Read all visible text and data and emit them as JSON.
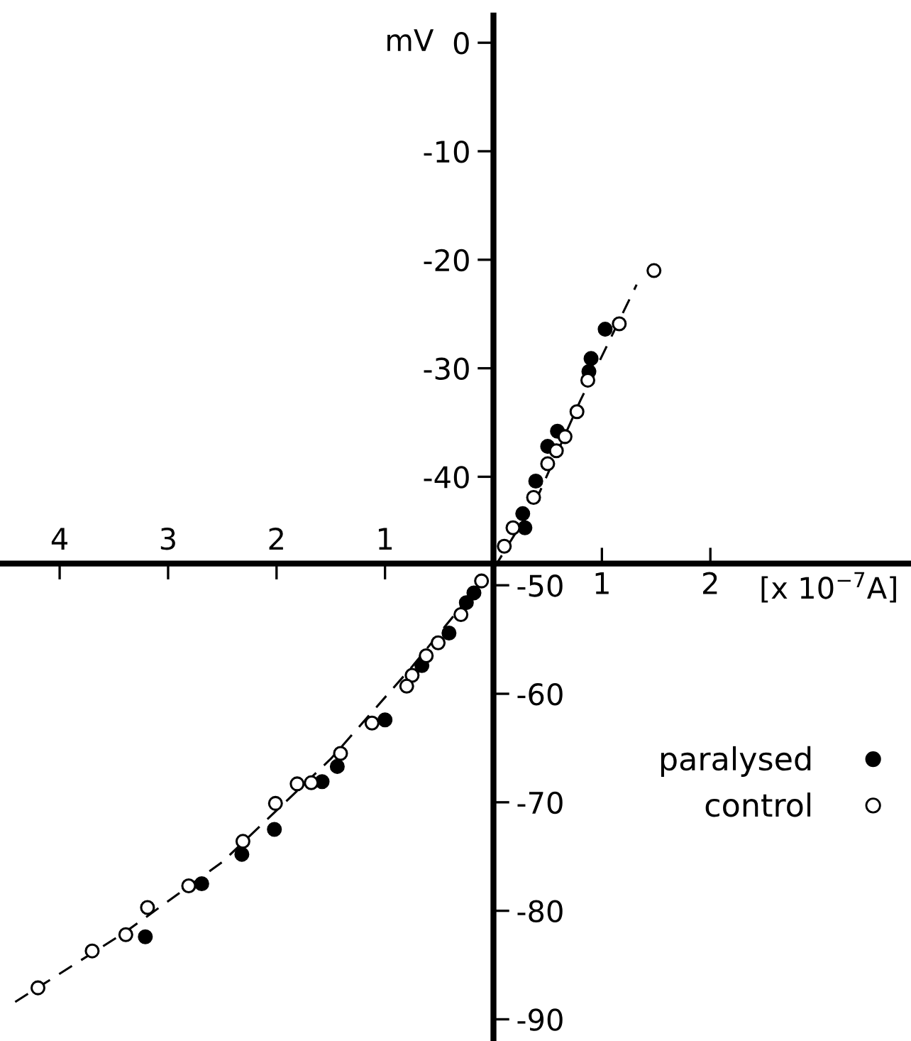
{
  "chart_data": {
    "type": "scatter",
    "xlabel": "[x 10$^{−7}$A]",
    "ylabel": "mV",
    "xlim": [
      -4.55,
      3.85
    ],
    "ylim": [
      -92,
      2.5
    ],
    "x2lim": [
      -4.55,
      3.85
    ],
    "y2lim": [
      -92,
      2.5
    ],
    "xticks": [
      1,
      2
    ],
    "x2ticks": [
      {
        "value": -4,
        "label": "4"
      },
      {
        "value": -3,
        "label": "3"
      },
      {
        "value": -2,
        "label": "2"
      },
      {
        "value": -1,
        "label": "1"
      }
    ],
    "yticks": [
      0,
      -10,
      -20,
      -30,
      -40
    ],
    "y2ticks": [
      -50,
      -60,
      -70,
      -80,
      -90
    ],
    "marker": "circle",
    "legend": "right",
    "grid": false,
    "series": [
      {
        "name": "paralysed",
        "color": "#000000",
        "x": [
          1.03,
          0.9,
          0.88,
          0.59,
          0.5,
          0.39,
          0.27,
          0.29,
          -0.18,
          -0.25,
          -0.41,
          -0.66,
          -1.0,
          -1.44,
          -1.58,
          -2.02,
          -2.32,
          -2.69,
          -3.21
        ],
        "values": [
          -26.4,
          -29.1,
          -30.3,
          -35.8,
          -37.2,
          -40.4,
          -43.4,
          -44.7,
          -50.7,
          -51.6,
          -54.4,
          -57.4,
          -62.4,
          -66.7,
          -68.1,
          -72.5,
          -74.8,
          -77.5,
          -82.4
        ]
      },
      {
        "name": "control",
        "color": "#ffffff",
        "x": [
          1.48,
          1.16,
          0.87,
          0.77,
          0.66,
          0.58,
          0.5,
          0.37,
          0.18,
          0.1,
          -0.11,
          -0.3,
          -0.51,
          -0.62,
          -0.75,
          -0.8,
          -1.12,
          -1.41,
          -1.68,
          -1.81,
          -2.01,
          -2.31,
          -2.81,
          -3.19,
          -3.39,
          -3.7,
          -4.2
        ],
        "values": [
          -21.0,
          -25.9,
          -31.1,
          -34.0,
          -36.3,
          -37.6,
          -38.8,
          -41.9,
          -44.7,
          -46.4,
          -49.6,
          -52.7,
          -55.3,
          -56.5,
          -58.3,
          -59.3,
          -62.7,
          -65.5,
          -68.2,
          -68.3,
          -70.1,
          -73.6,
          -77.7,
          -79.7,
          -82.2,
          -83.7,
          -87.1
        ]
      },
      {
        "type": "line",
        "color": "#000000",
        "line_style": "dashed",
        "marker": "none",
        "x": [
          -4.41,
          -3.4,
          -2.5,
          -1.5,
          -0.75,
          -0.3,
          0,
          0.4,
          0.8,
          1.32
        ],
        "values": [
          -88.4,
          -82,
          -75.5,
          -66,
          -57.5,
          -52,
          -48.5,
          -42,
          -33,
          -22.3
        ]
      }
    ]
  }
}
